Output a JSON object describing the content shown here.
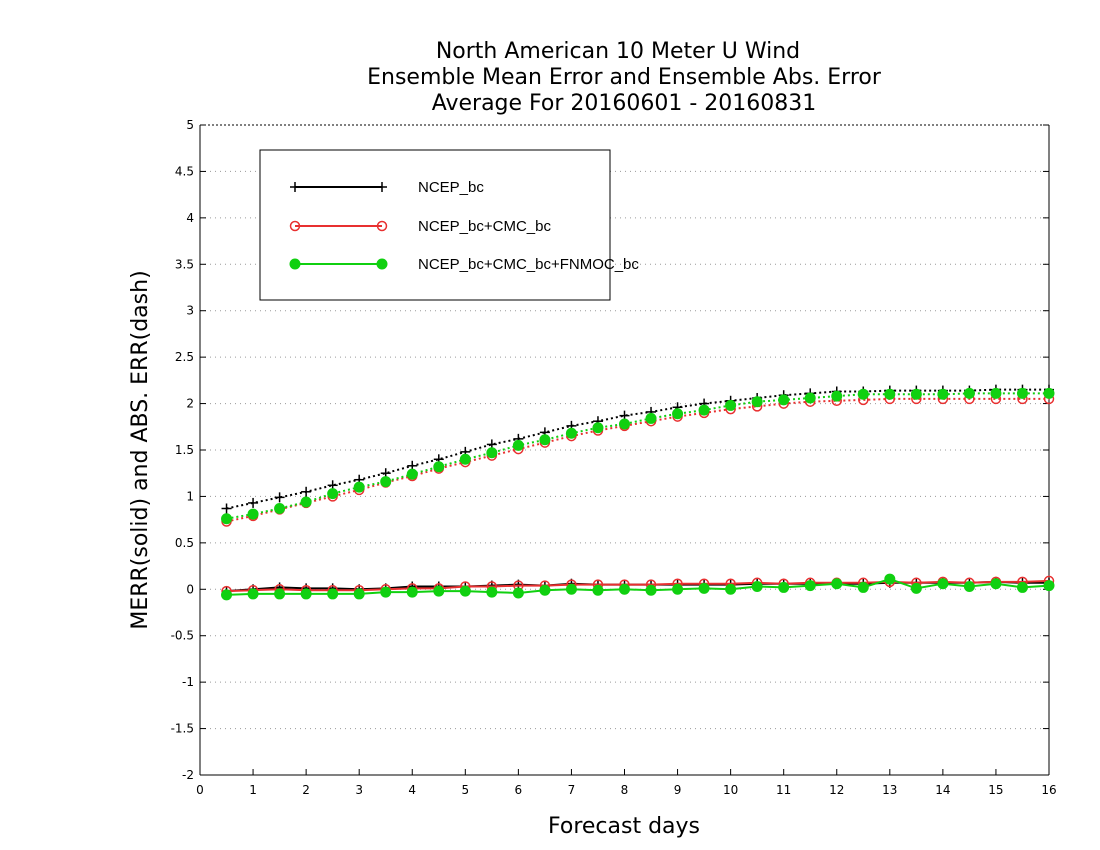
{
  "chart_data": {
    "type": "line",
    "title_lines": [
      "North American 10 Meter U Wind",
      "Ensemble Mean Error and Ensemble Abs. Error",
      "Average For 20160601 - 20160831"
    ],
    "xlabel": "Forecast days",
    "ylabel": "MERR(solid) and ABS. ERR(dash)",
    "xlim": [
      0,
      16
    ],
    "ylim": [
      -2,
      5
    ],
    "xticks": [
      0,
      1,
      2,
      3,
      4,
      5,
      6,
      7,
      8,
      9,
      10,
      11,
      12,
      13,
      14,
      15,
      16
    ],
    "yticks": [
      -2,
      -1.5,
      -1,
      -0.5,
      0,
      0.5,
      1,
      1.5,
      2,
      2.5,
      3,
      3.5,
      4,
      4.5,
      5
    ],
    "ytick_labels": [
      "-2",
      "-1.5",
      "-1",
      "-0.5",
      "0",
      "0.5",
      "1",
      "1.5",
      "2",
      "2.5",
      "3",
      "3.5",
      "4",
      "4.5",
      "5"
    ],
    "grid": "horizontal dotted",
    "legend_position": "top-left",
    "x": [
      0.5,
      1,
      1.5,
      2,
      2.5,
      3,
      3.5,
      4,
      4.5,
      5,
      5.5,
      6,
      6.5,
      7,
      7.5,
      8,
      8.5,
      9,
      9.5,
      10,
      10.5,
      11,
      11.5,
      12,
      12.5,
      13,
      13.5,
      14,
      14.5,
      15,
      15.5,
      16
    ],
    "series": [
      {
        "name": "NCEP_bc",
        "color": "#000000",
        "marker": "plus",
        "merr": [
          -0.02,
          0.0,
          0.02,
          0.01,
          0.01,
          0.0,
          0.01,
          0.03,
          0.03,
          0.03,
          0.04,
          0.05,
          0.04,
          0.06,
          0.05,
          0.05,
          0.05,
          0.05,
          0.05,
          0.05,
          0.06,
          0.06,
          0.06,
          0.06,
          0.06,
          0.07,
          0.07,
          0.07,
          0.07,
          0.08,
          0.07,
          0.07
        ],
        "abs_err": [
          0.87,
          0.93,
          0.99,
          1.05,
          1.12,
          1.18,
          1.25,
          1.33,
          1.4,
          1.48,
          1.56,
          1.62,
          1.69,
          1.76,
          1.81,
          1.87,
          1.91,
          1.96,
          2.0,
          2.03,
          2.06,
          2.09,
          2.11,
          2.13,
          2.13,
          2.14,
          2.14,
          2.14,
          2.14,
          2.15,
          2.15,
          2.15
        ]
      },
      {
        "name": "NCEP_bc+CMC_bc",
        "color": "#e83030",
        "marker": "open-circle",
        "merr": [
          -0.02,
          -0.01,
          0.0,
          -0.01,
          -0.01,
          -0.01,
          0.0,
          0.01,
          0.01,
          0.03,
          0.03,
          0.04,
          0.04,
          0.05,
          0.05,
          0.05,
          0.05,
          0.06,
          0.06,
          0.06,
          0.07,
          0.06,
          0.07,
          0.07,
          0.07,
          0.08,
          0.07,
          0.08,
          0.07,
          0.08,
          0.08,
          0.09
        ],
        "abs_err": [
          0.73,
          0.79,
          0.86,
          0.93,
          1.0,
          1.07,
          1.15,
          1.22,
          1.3,
          1.37,
          1.44,
          1.51,
          1.58,
          1.65,
          1.71,
          1.76,
          1.81,
          1.86,
          1.9,
          1.94,
          1.97,
          2.0,
          2.02,
          2.03,
          2.04,
          2.05,
          2.05,
          2.05,
          2.05,
          2.05,
          2.05,
          2.05
        ]
      },
      {
        "name": "NCEP_bc+CMC_bc+FNMOC_bc",
        "color": "#10d010",
        "marker": "filled-circle",
        "merr": [
          -0.06,
          -0.05,
          -0.05,
          -0.05,
          -0.05,
          -0.05,
          -0.03,
          -0.03,
          -0.02,
          -0.02,
          -0.03,
          -0.04,
          -0.01,
          0.0,
          -0.01,
          0.0,
          -0.01,
          0.0,
          0.01,
          0.0,
          0.03,
          0.02,
          0.04,
          0.06,
          0.02,
          0.11,
          0.01,
          0.06,
          0.03,
          0.06,
          0.02,
          0.04
        ],
        "abs_err": [
          0.76,
          0.81,
          0.87,
          0.94,
          1.03,
          1.1,
          1.16,
          1.24,
          1.32,
          1.4,
          1.47,
          1.55,
          1.61,
          1.68,
          1.74,
          1.78,
          1.84,
          1.89,
          1.93,
          1.98,
          2.02,
          2.04,
          2.06,
          2.08,
          2.1,
          2.1,
          2.1,
          2.1,
          2.11,
          2.11,
          2.11,
          2.11
        ]
      }
    ]
  }
}
